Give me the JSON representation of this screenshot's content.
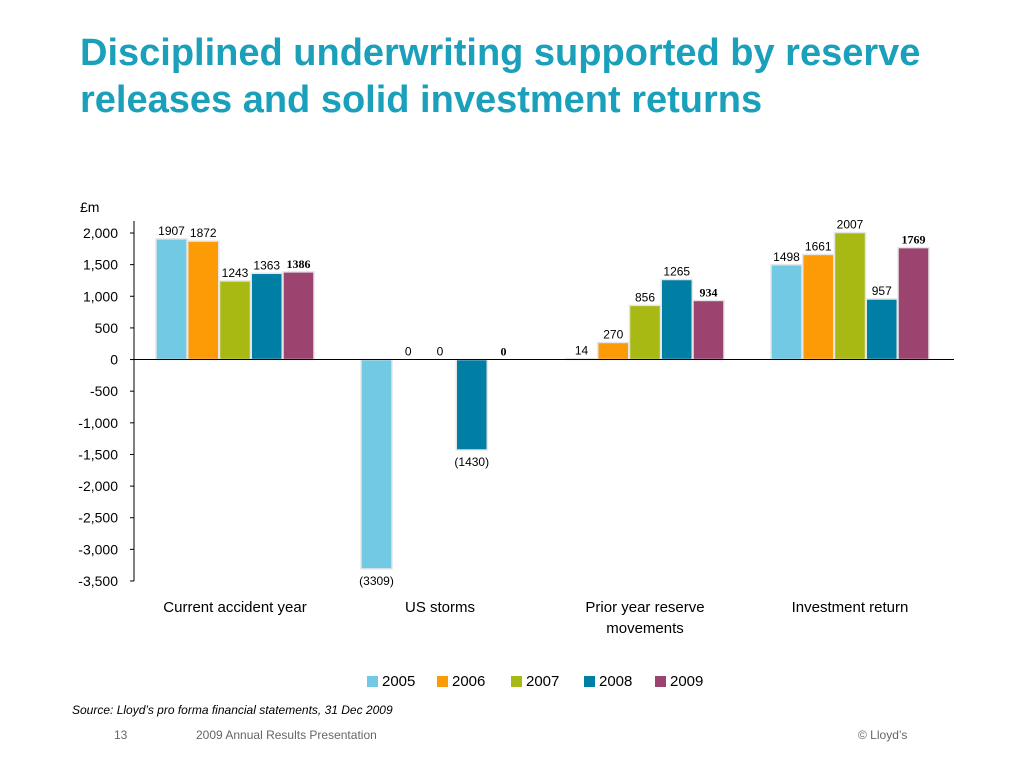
{
  "slide": {
    "title": "Disciplined underwriting supported by reserve releases and solid investment returns",
    "source": "Source: Lloyd’s pro forma financial statements, 31 Dec 2009",
    "page_number": "13",
    "presentation": "2009 Annual Results Presentation",
    "copyright": "© Lloyd’s"
  },
  "chart_data": {
    "type": "bar",
    "unit_label": "£m",
    "categories": [
      {
        "label": "Current accident year",
        "lines": [
          "Current accident year"
        ]
      },
      {
        "label": "US storms",
        "lines": [
          "US storms"
        ]
      },
      {
        "label": "Prior year reserve movements",
        "lines": [
          "Prior year reserve",
          "movements"
        ]
      },
      {
        "label": "Investment return",
        "lines": [
          "Investment return"
        ]
      }
    ],
    "series": [
      {
        "name": "2005",
        "color": "#72c9e3",
        "values": [
          1907,
          -3309,
          14,
          1498
        ],
        "labels": [
          "1907",
          "(3309)",
          "14",
          "1498"
        ],
        "bold": false
      },
      {
        "name": "2006",
        "color": "#fd9b06",
        "values": [
          1872,
          0,
          270,
          1661
        ],
        "labels": [
          "1872",
          "0",
          "270",
          "1661"
        ],
        "bold": false
      },
      {
        "name": "2007",
        "color": "#a9b914",
        "values": [
          1243,
          0,
          856,
          2007
        ],
        "labels": [
          "1243",
          "0",
          "856",
          "2007"
        ],
        "bold": false
      },
      {
        "name": "2008",
        "color": "#007ea3",
        "values": [
          1363,
          -1430,
          1265,
          957
        ],
        "labels": [
          "1363",
          "(1430)",
          "1265",
          "957"
        ],
        "bold": false
      },
      {
        "name": "2009",
        "color": "#9c4470",
        "values": [
          1386,
          0,
          934,
          1769
        ],
        "labels": [
          "1386",
          "0",
          "934",
          "1769"
        ],
        "bold": true
      }
    ],
    "y_ticks": [
      2000,
      1500,
      1000,
      500,
      0,
      -500,
      -1000,
      -1500,
      -2000,
      -2500,
      -3000,
      -3500
    ],
    "y_tick_labels": [
      "2,000",
      "1,500",
      "1,000",
      "500",
      "0",
      "-500",
      "-1,000",
      "-1,500",
      "-2,000",
      "-2,500",
      "-3,000",
      "-3,500"
    ],
    "ylim": [
      -3500,
      2000
    ],
    "grid": false,
    "legend_position": "bottom"
  }
}
